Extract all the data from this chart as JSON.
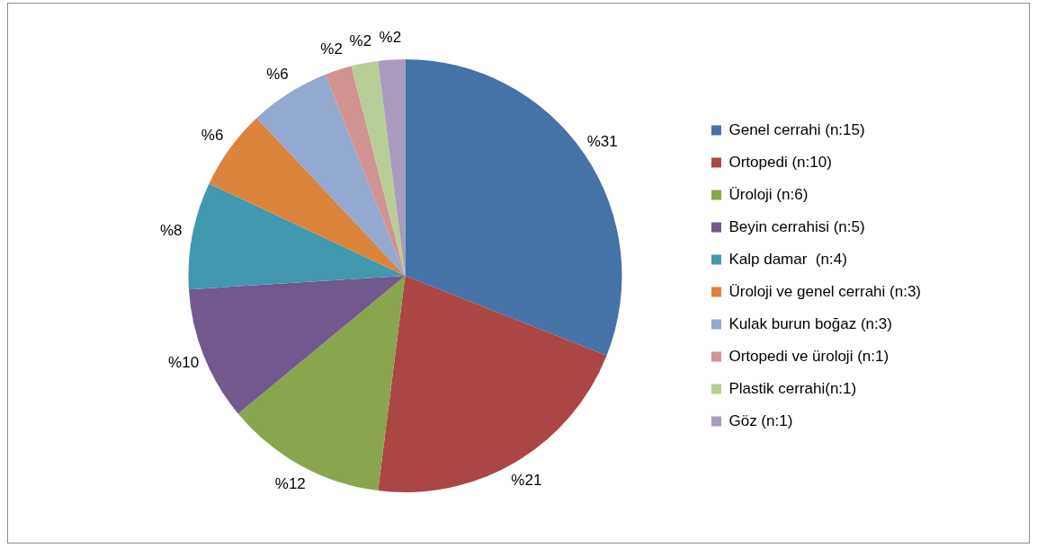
{
  "chart_data": {
    "type": "pie",
    "categories": [
      "Genel cerrahi (n:15)",
      "Ortopedi (n:10)",
      "Üroloji (n:6)",
      "Beyin cerrahisi (n:5)",
      "Kalp damar  (n:4)",
      "Üroloji ve genel cerrahi (n:3)",
      "Kulak burun boğaz (n:3)",
      "Ortopedi ve üroloji (n:1)",
      "Plastik cerrahi(n:1)",
      "Göz (n:1)"
    ],
    "values": [
      31,
      21,
      12,
      10,
      8,
      6,
      6,
      2,
      2,
      2
    ],
    "value_labels": [
      "%31",
      "%21",
      "%12",
      "%10",
      "%8",
      "%6",
      "%6",
      "%2",
      "%2",
      "%2"
    ],
    "colors": [
      "#4572a7",
      "#aa4643",
      "#89a54e",
      "#71588f",
      "#4198af",
      "#db843d",
      "#93a9cf",
      "#d19392",
      "#b9cd96",
      "#a99bbd"
    ],
    "legend": "right"
  }
}
